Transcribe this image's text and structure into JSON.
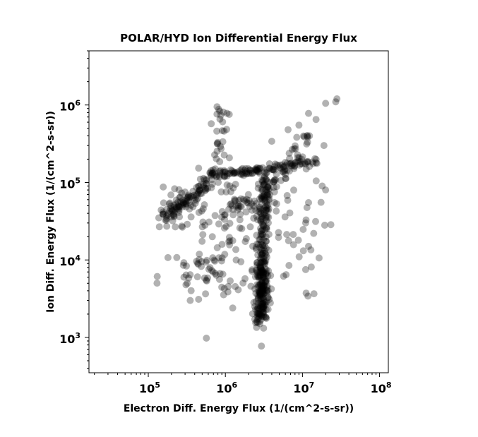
{
  "chart_data": {
    "type": "scatter",
    "title": "POLAR/HYD  Ion Differential Energy Flux",
    "xlabel": "Electron Diff. Energy Flux (1/(cm^2-s-sr))",
    "ylabel": "Ion Diff. Energy Flux (1/(cm^2-s-sr))",
    "x_scale": "log",
    "y_scale": "log",
    "xlim": [
      17000,
      130000000
    ],
    "ylim": [
      350,
      5000000
    ],
    "grid": false,
    "legend": "none",
    "marker_color": "#000000",
    "marker_opacity": 0.3,
    "x_ticks": [
      {
        "base": "10",
        "exp": "5",
        "value": 100000
      },
      {
        "base": "10",
        "exp": "6",
        "value": 1000000
      },
      {
        "base": "10",
        "exp": "7",
        "value": 10000000
      },
      {
        "base": "10",
        "exp": "8",
        "value": 100000000
      }
    ],
    "y_ticks": [
      {
        "base": "10",
        "exp": "3",
        "value": 1000
      },
      {
        "base": "10",
        "exp": "4",
        "value": 10000
      },
      {
        "base": "10",
        "exp": "5",
        "value": 100000
      },
      {
        "base": "10",
        "exp": "6",
        "value": 1000000
      }
    ],
    "segments": [
      {
        "name": "low_horizontal_band",
        "x_from": 160000,
        "y_from": 35000,
        "x_to": 420000,
        "y_to": 70000,
        "n": 60,
        "spread": 0.05
      },
      {
        "name": "rise_to_top_band",
        "x_from": 420000,
        "y_from": 70000,
        "x_to": 600000,
        "y_to": 110000,
        "n": 25,
        "spread": 0.04
      },
      {
        "name": "upper_horizontal_band",
        "x_from": 600000,
        "y_from": 125000,
        "x_to": 2800000,
        "y_to": 145000,
        "n": 70,
        "spread": 0.03
      },
      {
        "name": "upper_right_band",
        "x_from": 2800000,
        "y_from": 145000,
        "x_to": 15000000,
        "y_to": 190000,
        "n": 60,
        "spread": 0.035
      },
      {
        "name": "diagonal_rise",
        "x_from": 2500000,
        "y_from": 40000,
        "x_to": 12000000,
        "y_to": 420000,
        "n": 55,
        "spread": 0.05
      },
      {
        "name": "vertical_column",
        "x_from": 2800000,
        "y_from": 1800,
        "x_to": 3300000,
        "y_to": 120000,
        "n": 180,
        "spread": 0.04
      },
      {
        "name": "left_vertical_plume",
        "x_from": 850000,
        "y_from": 180000,
        "x_to": 950000,
        "y_to": 950000,
        "n": 25,
        "spread": 0.05
      },
      {
        "name": "mid_band",
        "x_from": 1100000,
        "y_from": 50000,
        "x_to": 2600000,
        "y_to": 60000,
        "n": 25,
        "spread": 0.04
      }
    ],
    "clusters": [
      {
        "name": "central_blob",
        "x_center": 900000,
        "y_center": 25000,
        "n": 90,
        "x_spread": 0.35,
        "y_spread": 0.35
      },
      {
        "name": "lower_left_scatter",
        "x_center": 700000,
        "y_center": 6000,
        "n": 45,
        "x_spread": 0.35,
        "y_spread": 0.22
      },
      {
        "name": "column_core",
        "x_center": 3000000,
        "y_center": 4000,
        "n": 120,
        "x_spread": 0.05,
        "y_spread": 0.25
      },
      {
        "name": "right_scatter",
        "x_center": 6000000,
        "y_center": 20000,
        "n": 35,
        "x_spread": 0.25,
        "y_spread": 0.4
      },
      {
        "name": "left_scatter",
        "x_center": 230000,
        "y_center": 45000,
        "n": 30,
        "x_spread": 0.1,
        "y_spread": 0.15
      }
    ],
    "points": [
      [
        28000000,
        1200000
      ],
      [
        27000000,
        1100000
      ],
      [
        20000000,
        1050000
      ],
      [
        12000000,
        780000
      ],
      [
        15000000,
        650000
      ],
      [
        9000000,
        550000
      ],
      [
        6500000,
        480000
      ],
      [
        4000000,
        340000
      ],
      [
        19000000,
        300000
      ],
      [
        18000000,
        90000
      ],
      [
        20000000,
        80000
      ],
      [
        12000000,
        55000
      ],
      [
        11000000,
        30000
      ],
      [
        12000000,
        15000
      ],
      [
        11000000,
        7500
      ],
      [
        14000000,
        22000
      ],
      [
        290000,
        6000
      ],
      [
        350000,
        3000
      ],
      [
        450000,
        3100
      ],
      [
        320000,
        5000
      ],
      [
        2800000,
        1500
      ],
      [
        2600000,
        1700
      ],
      [
        780000,
        950000
      ],
      [
        820000,
        880000
      ]
    ]
  }
}
